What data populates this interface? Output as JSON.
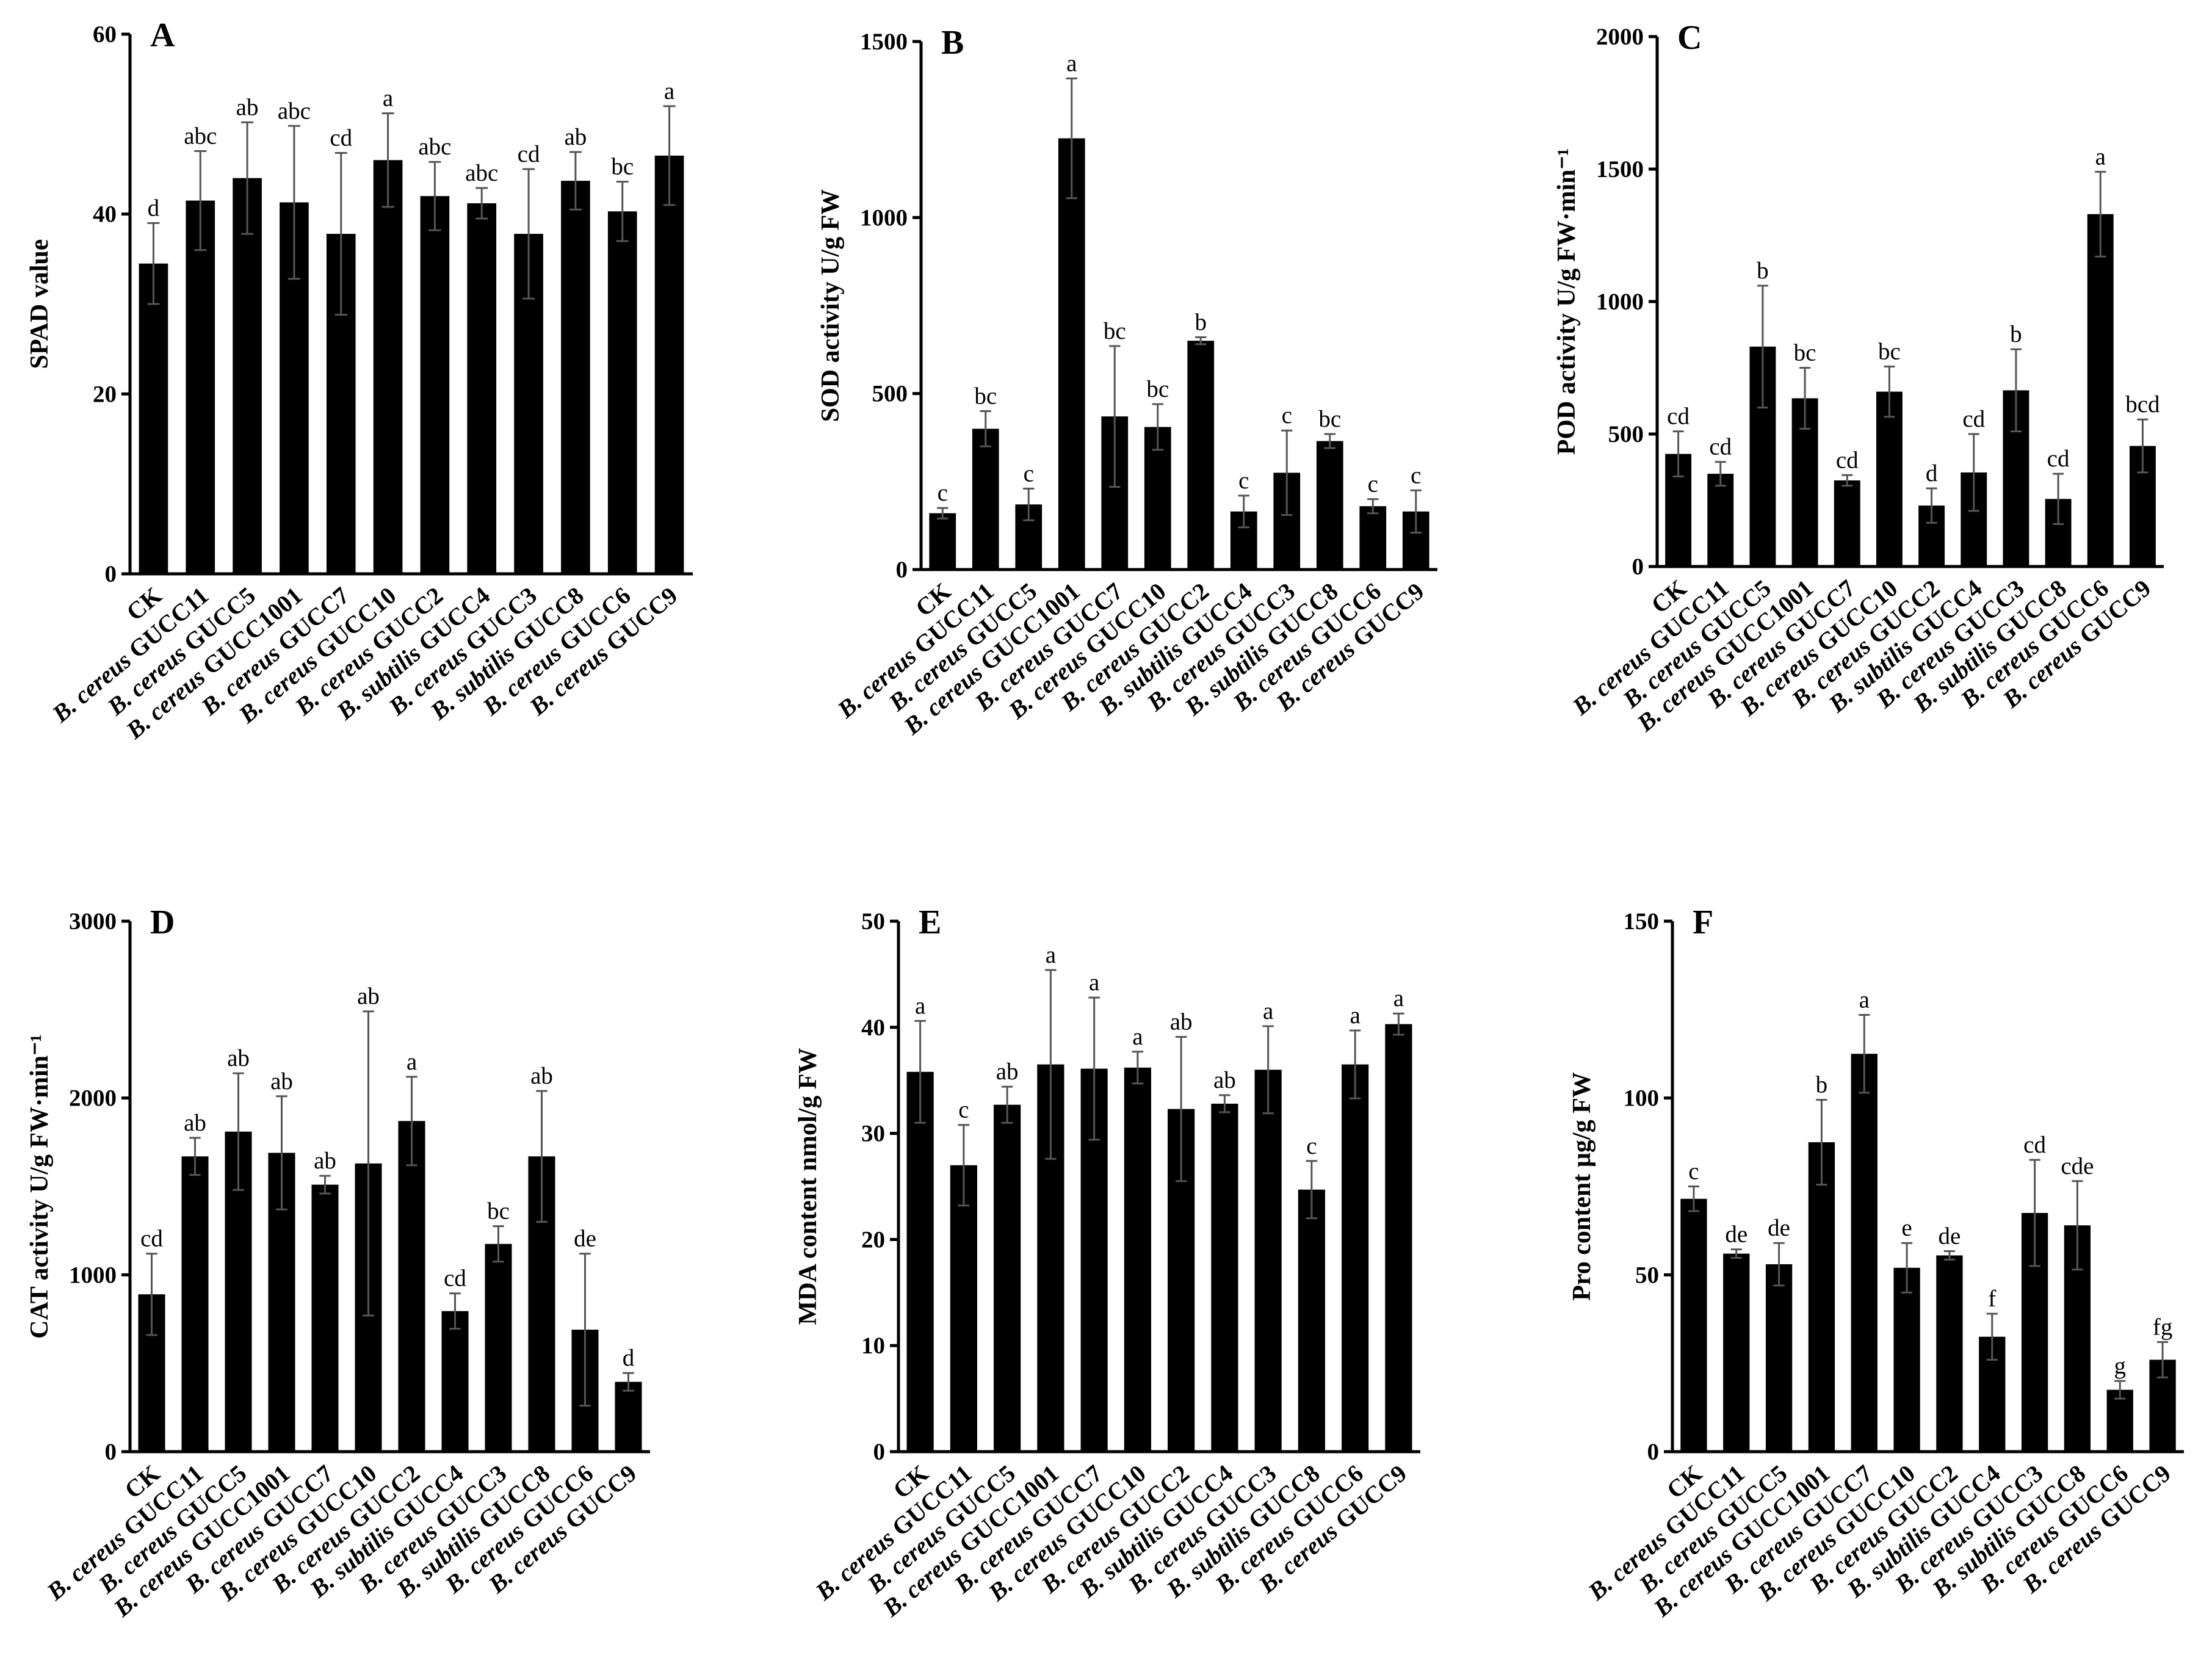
{
  "figure": {
    "categories": [
      "CK",
      "B. cereus GUCC11",
      "B. cereus GUCC5",
      "B. cereus GUCC1001",
      "B. cereus GUCC7",
      "B. cereus GUCC10",
      "B. cereus GUCC2",
      "B. subtilis GUCC4",
      "B. cereus GUCC3",
      "B. subtilis GUCC8",
      "B. cereus GUCC6",
      "B. cereus GUCC9"
    ],
    "colors": {
      "bar": "#000000",
      "axis": "#000000",
      "error_bar": "#555555"
    }
  },
  "chart_data": [
    {
      "type": "bar",
      "panel": "A",
      "ylabel": "SPAD value",
      "ylim": [
        0,
        60
      ],
      "yticks": [
        0,
        20,
        40,
        60
      ],
      "values": [
        34.5,
        41.5,
        44,
        41.3,
        37.8,
        46,
        42,
        41.2,
        37.8,
        43.7,
        40.3,
        46.5
      ],
      "errors": [
        4.5,
        5.5,
        6.2,
        8.5,
        9.0,
        5.2,
        3.8,
        1.7,
        7.2,
        3.2,
        3.3,
        5.5
      ],
      "letters": [
        "d",
        "abc",
        "ab",
        "abc",
        "cd",
        "a",
        "abc",
        "abc",
        "cd",
        "ab",
        "bc",
        "a"
      ]
    },
    {
      "type": "bar",
      "panel": "B",
      "ylabel": "SOD activity U/g FW",
      "ylim": [
        0,
        1500
      ],
      "yticks": [
        0,
        500,
        1000,
        1500
      ],
      "values": [
        160,
        400,
        185,
        1225,
        435,
        405,
        650,
        165,
        275,
        365,
        180,
        165
      ],
      "errors": [
        15,
        50,
        45,
        170,
        200,
        65,
        10,
        45,
        120,
        20,
        20,
        60
      ],
      "letters": [
        "c",
        "bc",
        "c",
        "a",
        "bc",
        "bc",
        "b",
        "c",
        "c",
        "bc",
        "c",
        "c"
      ]
    },
    {
      "type": "bar",
      "panel": "C",
      "ylabel": "POD activity U/g FW·min⁻¹",
      "ylim": [
        0,
        2000
      ],
      "yticks": [
        0,
        500,
        1000,
        1500,
        2000
      ],
      "values": [
        425,
        350,
        830,
        635,
        325,
        660,
        230,
        355,
        665,
        255,
        1330,
        455
      ],
      "errors": [
        85,
        45,
        230,
        115,
        20,
        95,
        65,
        145,
        155,
        95,
        160,
        100
      ],
      "letters": [
        "cd",
        "cd",
        "b",
        "bc",
        "cd",
        "bc",
        "d",
        "cd",
        "b",
        "cd",
        "a",
        "bcd"
      ]
    },
    {
      "type": "bar",
      "panel": "D",
      "ylabel": "CAT activity U/g FW·min⁻¹",
      "ylim": [
        0,
        3000
      ],
      "yticks": [
        0,
        1000,
        2000,
        3000
      ],
      "values": [
        890,
        1670,
        1810,
        1690,
        1510,
        1630,
        1870,
        795,
        1175,
        1670,
        690,
        395
      ],
      "errors": [
        230,
        105,
        330,
        320,
        50,
        860,
        250,
        100,
        100,
        370,
        430,
        50
      ],
      "letters": [
        "cd",
        "ab",
        "ab",
        "ab",
        "ab",
        "ab",
        "a",
        "cd",
        "bc",
        "ab",
        "de",
        "d"
      ]
    },
    {
      "type": "bar",
      "panel": "E",
      "ylabel": "MDA content nmol/g FW",
      "ylim": [
        0,
        50
      ],
      "yticks": [
        0,
        10,
        20,
        30,
        40,
        50
      ],
      "values": [
        35.8,
        27,
        32.7,
        36.5,
        36.1,
        36.2,
        32.3,
        32.8,
        36,
        24.7,
        36.5,
        40.3
      ],
      "errors": [
        4.8,
        3.8,
        1.7,
        8.9,
        6.7,
        1.5,
        6.8,
        0.8,
        4.1,
        2.7,
        3.2,
        1.0
      ],
      "letters": [
        "a",
        "c",
        "ab",
        "a",
        "a",
        "a",
        "ab",
        "ab",
        "a",
        "c",
        "a",
        "a"
      ]
    },
    {
      "type": "bar",
      "panel": "F",
      "ylabel": "Pro content µg/g FW",
      "ylim": [
        0,
        150
      ],
      "yticks": [
        0,
        50,
        100,
        150
      ],
      "values": [
        71.5,
        56,
        53,
        87.5,
        112.5,
        52,
        55.5,
        32.5,
        67.5,
        64,
        17.5,
        26
      ],
      "errors": [
        3.5,
        1.2,
        6,
        12,
        11,
        7,
        1.2,
        6.5,
        15,
        12.5,
        2.5,
        5
      ],
      "letters": [
        "c",
        "de",
        "de",
        "b",
        "a",
        "e",
        "de",
        "f",
        "cd",
        "cde",
        "g",
        "fg"
      ]
    }
  ]
}
